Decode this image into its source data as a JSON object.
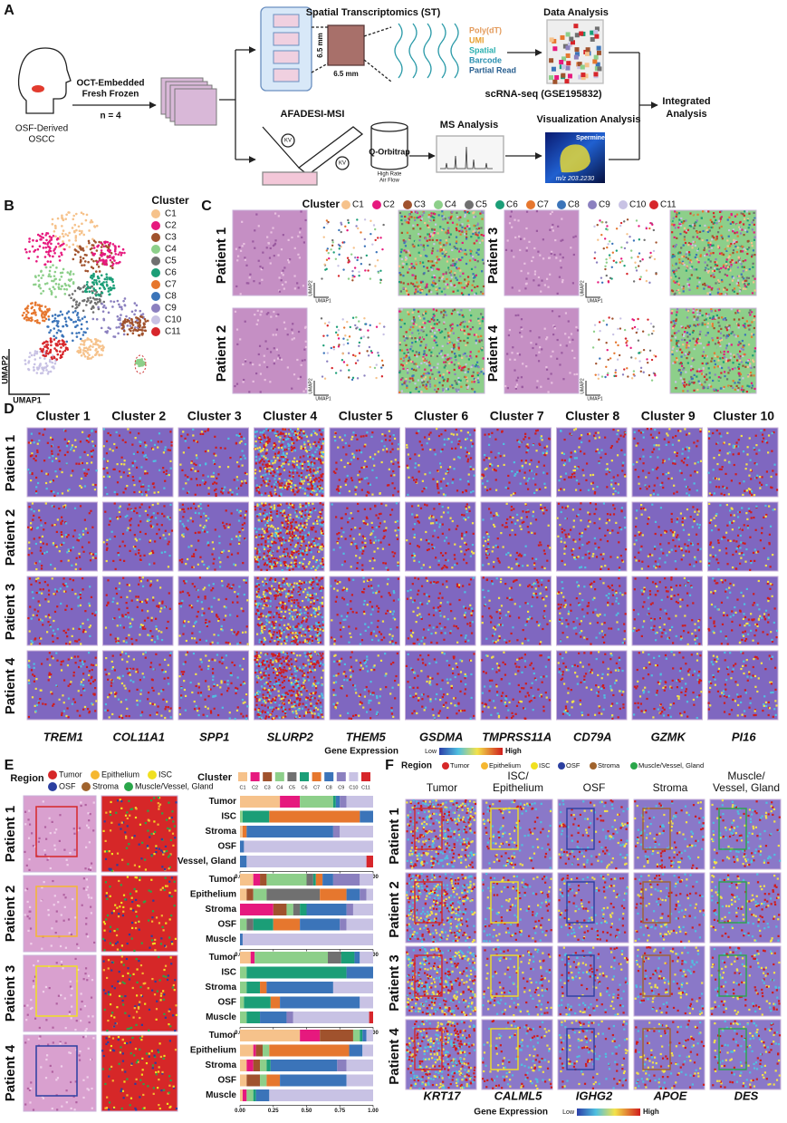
{
  "panel_a": {
    "label": "A",
    "st_title": "Spatial Transcriptomics (ST)",
    "dims": [
      "6.5 mm",
      "6.5 mm"
    ],
    "probe": [
      "Poly(dT)",
      "UMI",
      "Spatial",
      "Barcode",
      "Partial Read"
    ],
    "data_analysis": "Data Analysis",
    "sample_prep": [
      "OCT-Embedded",
      "Fresh Frozen"
    ],
    "n": "n = 4",
    "source": [
      "OSF-Derived",
      "OSCC"
    ],
    "scrna": "scRNA-seq (GSE195832)",
    "integrated": [
      "Integrated",
      "Analysis"
    ],
    "msi": "AFADESI-MSI",
    "ms_analysis": "MS Analysis",
    "vis_analysis": "Visualization Analysis",
    "orbitrap": "Q-Orbitrap",
    "kv": [
      "KV",
      "KV"
    ],
    "airflow": [
      "High Rate",
      "Air Flow"
    ],
    "spermine": "Spermine",
    "mz": "m/z 203.2230"
  },
  "cluster_title": "Cluster",
  "clusters": [
    {
      "name": "C1",
      "color": "#f6c28b"
    },
    {
      "name": "C2",
      "color": "#e6197e"
    },
    {
      "name": "C3",
      "color": "#a0522d"
    },
    {
      "name": "C4",
      "color": "#8dcf8a"
    },
    {
      "name": "C5",
      "color": "#707070"
    },
    {
      "name": "C6",
      "color": "#1b9e77"
    },
    {
      "name": "C7",
      "color": "#e6772e"
    },
    {
      "name": "C8",
      "color": "#3b74b9"
    },
    {
      "name": "C9",
      "color": "#8b80bf"
    },
    {
      "name": "C10",
      "color": "#c8c2e4"
    },
    {
      "name": "C11",
      "color": "#d7262b"
    }
  ],
  "patients": [
    "Patient 1",
    "Patient 2",
    "Patient 3",
    "Patient 4"
  ],
  "panel_b": {
    "label": "B",
    "umap2": "UMAP2",
    "umap1": "UMAP1"
  },
  "panel_c": {
    "label": "C",
    "umap1": "UMAP1",
    "umap2": "UMAP2"
  },
  "panel_d": {
    "label": "D",
    "columns": [
      "Cluster 1",
      "Cluster 2",
      "Cluster 3",
      "Cluster 4",
      "Cluster 5",
      "Cluster 6",
      "Cluster 7",
      "Cluster 8",
      "Cluster 9",
      "Cluster 10"
    ],
    "genes": [
      "TREM1",
      "COL11A1",
      "SPP1",
      "SLURP2",
      "THEM5",
      "GSDMA",
      "TMPRSS11A",
      "CD79A",
      "GZMK",
      "PI16"
    ],
    "legend_title": "Gene Expression",
    "low": "Low",
    "high": "High"
  },
  "panel_e": {
    "label": "E",
    "region_title": "Region",
    "regions": [
      {
        "name": "Tumor",
        "color": "#d62728"
      },
      {
        "name": "Epithelium",
        "color": "#f5b731"
      },
      {
        "name": "ISC",
        "color": "#f0e020"
      },
      {
        "name": "OSF",
        "color": "#2b3fa0"
      },
      {
        "name": "Stroma",
        "color": "#a0632d"
      },
      {
        "name": "Muscle/Vessel, Gland",
        "color": "#2aa64a"
      }
    ],
    "charts": [
      {
        "categories": [
          "Tumor",
          "ISC",
          "Stroma",
          "OSF",
          "Vessel, Gland"
        ],
        "xlim": [
          0,
          1
        ],
        "xticks": [
          {
            "value": 0,
            "label": "0.00"
          },
          {
            "value": 0.25,
            "label": "0.25"
          },
          {
            "value": 0.5,
            "label": "0.50"
          },
          {
            "value": 0.75,
            "label": "0.75"
          },
          {
            "value": 1,
            "label": "1.00"
          }
        ],
        "values": [
          [
            0.3,
            0.15,
            0,
            0.25,
            0,
            0.02,
            0,
            0.03,
            0.05,
            0.2,
            0
          ],
          [
            0,
            0,
            0,
            0.02,
            0,
            0.2,
            0.68,
            0.1,
            0,
            0,
            0
          ],
          [
            0.02,
            0,
            0,
            0,
            0,
            0,
            0.03,
            0.65,
            0.05,
            0.25,
            0
          ],
          [
            0,
            0,
            0,
            0,
            0,
            0,
            0,
            0.03,
            0,
            0.97,
            0
          ],
          [
            0,
            0,
            0,
            0,
            0,
            0,
            0,
            0.05,
            0,
            0.9,
            0.05
          ]
        ]
      },
      {
        "categories": [
          "Tumor",
          "Epithelium",
          "Stroma",
          "OSF",
          "Muscle"
        ],
        "xlim": [
          0,
          1
        ],
        "xticks": [
          {
            "value": 0,
            "label": "0.00"
          },
          {
            "value": 0.25,
            "label": "0.25"
          },
          {
            "value": 0.5,
            "label": "0.50"
          },
          {
            "value": 0.75,
            "label": "0.75"
          },
          {
            "value": 1,
            "label": "1.00"
          }
        ],
        "values": [
          [
            0.1,
            0.05,
            0.05,
            0.3,
            0.05,
            0.02,
            0.05,
            0.08,
            0.2,
            0.1,
            0
          ],
          [
            0.05,
            0,
            0.05,
            0.1,
            0.4,
            0,
            0.2,
            0.1,
            0.05,
            0.05,
            0
          ],
          [
            0,
            0.25,
            0.1,
            0.05,
            0.05,
            0.05,
            0,
            0.3,
            0.05,
            0.15,
            0
          ],
          [
            0,
            0,
            0,
            0.05,
            0.05,
            0.15,
            0.2,
            0.3,
            0.05,
            0.2,
            0
          ],
          [
            0,
            0,
            0,
            0,
            0,
            0,
            0,
            0.02,
            0,
            0.98,
            0
          ]
        ]
      },
      {
        "categories": [
          "Tumor",
          "ISC",
          "Stroma",
          "OSF",
          "Muscle"
        ],
        "xlim": [
          0,
          1
        ],
        "xticks": [
          {
            "value": 0,
            "label": "0.00"
          },
          {
            "value": 0.25,
            "label": "0.25"
          },
          {
            "value": 0.5,
            "label": "0.50"
          },
          {
            "value": 0.75,
            "label": "0.75"
          },
          {
            "value": 1,
            "label": "1.00"
          }
        ],
        "values": [
          [
            0.08,
            0.03,
            0,
            0.55,
            0.1,
            0.1,
            0,
            0.04,
            0,
            0.1,
            0
          ],
          [
            0,
            0,
            0,
            0.05,
            0,
            0.75,
            0,
            0.2,
            0,
            0,
            0
          ],
          [
            0,
            0,
            0,
            0.05,
            0,
            0.1,
            0.05,
            0.5,
            0,
            0.3,
            0
          ],
          [
            0,
            0,
            0,
            0.03,
            0,
            0.2,
            0.07,
            0.6,
            0,
            0.1,
            0
          ],
          [
            0,
            0,
            0,
            0.05,
            0,
            0.1,
            0,
            0.2,
            0.05,
            0.57,
            0.03
          ]
        ]
      },
      {
        "categories": [
          "Tumor",
          "Epithelium",
          "Stroma",
          "OSF",
          "Muscle"
        ],
        "xlim": [
          0,
          1
        ],
        "xticks": [
          {
            "value": 0,
            "label": "0.00"
          },
          {
            "value": 0.25,
            "label": "0.25"
          },
          {
            "value": 0.5,
            "label": "0.50"
          },
          {
            "value": 0.75,
            "label": "0.75"
          },
          {
            "value": 1,
            "label": "1.00"
          }
        ],
        "values": [
          [
            0.45,
            0.15,
            0.25,
            0.05,
            0,
            0.02,
            0,
            0.03,
            0,
            0.05,
            0
          ],
          [
            0.1,
            0.02,
            0.05,
            0.05,
            0,
            0,
            0.6,
            0.1,
            0,
            0.08,
            0
          ],
          [
            0.05,
            0.05,
            0.05,
            0.05,
            0,
            0.03,
            0,
            0.5,
            0.07,
            0.2,
            0
          ],
          [
            0.05,
            0,
            0.1,
            0.05,
            0,
            0,
            0.1,
            0.5,
            0,
            0.2,
            0
          ],
          [
            0.02,
            0.03,
            0,
            0.05,
            0,
            0.02,
            0,
            0.1,
            0,
            0.78,
            0
          ]
        ]
      }
    ]
  },
  "panel_f": {
    "label": "F",
    "columns": [
      [
        "Tumor"
      ],
      [
        "ISC/",
        "Epithelium"
      ],
      [
        "OSF"
      ],
      [
        "Stroma"
      ],
      [
        "Muscle/",
        "Vessel, Gland"
      ]
    ],
    "genes": [
      "KRT17",
      "CALML5",
      "IGHG2",
      "APOE",
      "DES"
    ]
  }
}
